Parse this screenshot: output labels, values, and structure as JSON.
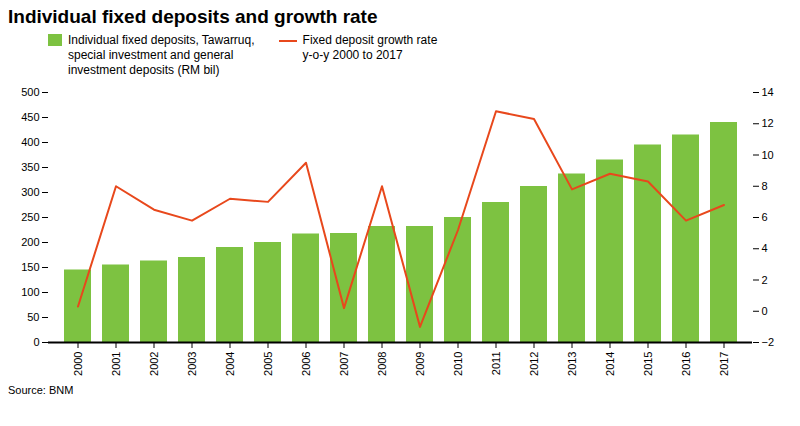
{
  "chart_data": {
    "type": "bar",
    "title": "Individual fixed deposits and growth rate",
    "categories": [
      "2000",
      "2001",
      "2002",
      "2003",
      "2004",
      "2005",
      "2006",
      "2007",
      "2008",
      "2009",
      "2010",
      "2011",
      "2012",
      "2013",
      "2014",
      "2015",
      "2016",
      "2017"
    ],
    "series": [
      {
        "name": "Individual fixed deposits, Tawarruq,\nspecial investment and general\ninvestment deposits (RM bil)",
        "type": "bar",
        "color": "#7DC241",
        "values": [
          145,
          155,
          163,
          170,
          190,
          200,
          217,
          218,
          232,
          232,
          250,
          280,
          312,
          337,
          365,
          395,
          415,
          440
        ]
      },
      {
        "name": "Fixed deposit growth rate\ny-o-y 2000 to 2017",
        "type": "line",
        "axis": "y2",
        "color": "#E8481C",
        "values": [
          0.3,
          8.0,
          6.5,
          5.8,
          7.2,
          7.0,
          9.5,
          0.2,
          8.0,
          -1.0,
          5.2,
          12.8,
          12.3,
          7.8,
          8.8,
          8.3,
          5.8,
          6.8
        ]
      }
    ],
    "ylim": [
      0,
      500
    ],
    "yticks": [
      0,
      50,
      100,
      150,
      200,
      250,
      300,
      350,
      400,
      450,
      500
    ],
    "y2lim": [
      -2,
      14
    ],
    "y2ticks": [
      -2,
      0,
      2,
      4,
      6,
      8,
      10,
      12,
      14
    ],
    "grid": false,
    "legend": "upper left",
    "annotations": [
      "Source: BNM"
    ]
  }
}
